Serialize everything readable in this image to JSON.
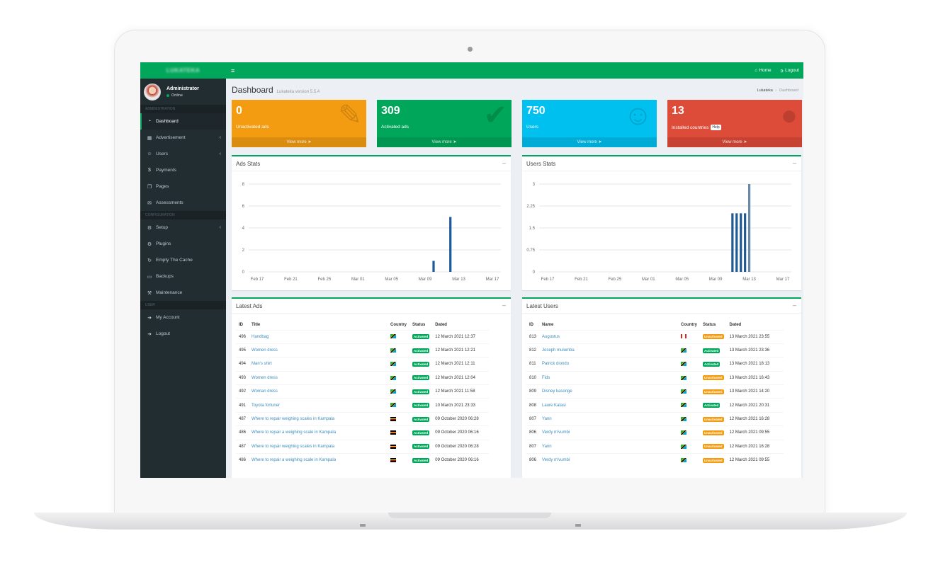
{
  "app": {
    "logo_text": "LUKATEKA",
    "version_label": "Lukateka version 5.5.4"
  },
  "user": {
    "name": "Administrator",
    "status": "Online"
  },
  "topbar": {
    "home": "Home",
    "logout": "Logout"
  },
  "sidebar": {
    "section_admin": "ADMINISTRATION",
    "section_config": "CONFIGURATION",
    "section_user": "USER",
    "admin_items": [
      {
        "label": "Dashboard",
        "icon": "dashboard-icon"
      },
      {
        "label": "Advertisement",
        "icon": "table-icon"
      },
      {
        "label": "Users",
        "icon": "users-icon"
      },
      {
        "label": "Payments",
        "icon": "dollar-icon"
      },
      {
        "label": "Pages",
        "icon": "pages-icon"
      },
      {
        "label": "Assessments",
        "icon": "comment-icon"
      }
    ],
    "config_items": [
      {
        "label": "Setup",
        "icon": "gear-icon"
      },
      {
        "label": "Plugins",
        "icon": "plugins-icon"
      },
      {
        "label": "Empty The Cache",
        "icon": "refresh-icon"
      },
      {
        "label": "Backups",
        "icon": "folder-icon"
      },
      {
        "label": "Maintenance",
        "icon": "maintenance-icon"
      }
    ],
    "user_items": [
      {
        "label": "My Account",
        "icon": "signout-icon"
      },
      {
        "label": "Logout",
        "icon": "signout-icon"
      }
    ]
  },
  "page": {
    "title": "Dashboard",
    "breadcrumb": [
      "Lukateka",
      "Dashboard"
    ]
  },
  "stats": [
    {
      "value": "0",
      "label": "Unactivated ads",
      "footer": "View more",
      "color": "#f39c12",
      "icon": "edit-icon"
    },
    {
      "value": "309",
      "label": "Activated ads",
      "footer": "View more",
      "color": "#00a65a",
      "icon": "check-icon"
    },
    {
      "value": "750",
      "label": "Users",
      "footer": "View more",
      "color": "#00c0ef",
      "icon": "user-plus-icon"
    },
    {
      "value": "13",
      "label": "Installed countries",
      "footer": "View more",
      "help": "Help",
      "color": "#dd4b39",
      "icon": "globe-icon"
    }
  ],
  "ads_stats": {
    "title": "Ads Stats"
  },
  "users_stats": {
    "title": "Users Stats"
  },
  "chart_data": [
    {
      "type": "bar",
      "title": "Ads Stats",
      "x_ticks": [
        "Feb 17",
        "Feb 21",
        "Feb 25",
        "Mar 01",
        "Mar 05",
        "Mar 09",
        "Mar 13",
        "Mar 17"
      ],
      "ylim": [
        0,
        8
      ],
      "y_ticks": [
        0,
        2,
        4,
        6,
        8
      ],
      "grid": true,
      "bar_color": "#1f5a96",
      "series": [
        {
          "points": [
            {
              "x": "Mar 10",
              "y": 1
            },
            {
              "x": "Mar 12",
              "y": 5
            }
          ]
        }
      ]
    },
    {
      "type": "bar",
      "title": "Users Stats",
      "x_ticks": [
        "Feb 17",
        "Feb 21",
        "Feb 25",
        "Mar 01",
        "Mar 05",
        "Mar 09",
        "Mar 13",
        "Mar 17"
      ],
      "ylim": [
        0,
        3
      ],
      "y_ticks": [
        0,
        0.75,
        1.5,
        2.25,
        3
      ],
      "grid": true,
      "bar_color": "#1f5a96",
      "series": [
        {
          "points": [
            {
              "x": "Mar 11",
              "y": 2
            },
            {
              "x": "Mar 11.5",
              "y": 2
            },
            {
              "x": "Mar 12",
              "y": 2
            },
            {
              "x": "Mar 12.5",
              "y": 2
            },
            {
              "x": "Mar 13",
              "y": 3
            }
          ]
        }
      ]
    }
  ],
  "latest_ads": {
    "title": "Latest Ads",
    "headers": [
      "ID",
      "Title",
      "Country",
      "Status",
      "Dated"
    ],
    "rows": [
      {
        "id": "496",
        "title": "Handbag",
        "flag": "tz",
        "status": "Activated",
        "dated": "12 March 2021 12:37"
      },
      {
        "id": "495",
        "title": "Women dress",
        "flag": "tz",
        "status": "Activated",
        "dated": "12 March 2021 12:21"
      },
      {
        "id": "494",
        "title": "Man's shirt",
        "flag": "tz",
        "status": "Activated",
        "dated": "12 March 2021 12:11"
      },
      {
        "id": "493",
        "title": "Women dress",
        "flag": "tz",
        "status": "Activated",
        "dated": "12 March 2021 12:04"
      },
      {
        "id": "492",
        "title": "Woman dress",
        "flag": "tz",
        "status": "Activated",
        "dated": "12 March 2021 11:58"
      },
      {
        "id": "491",
        "title": "Toyota fortuner",
        "flag": "tz",
        "status": "Activated",
        "dated": "10 March 2021 23:33"
      },
      {
        "id": "487",
        "title": "Where to repair weighing scales in Kampala",
        "flag": "ug",
        "status": "Activated",
        "dated": "09 October 2020 06:28"
      },
      {
        "id": "486",
        "title": "Where to repair a weighing scale in Kampala",
        "flag": "ug",
        "status": "Activated",
        "dated": "09 October 2020 06:16"
      },
      {
        "id": "487",
        "title": "Where to repair weighing scales in Kampala",
        "flag": "ug",
        "status": "Activated",
        "dated": "09 October 2020 06:28"
      },
      {
        "id": "486",
        "title": "Where to repair a weighing scale in Kampala",
        "flag": "ug",
        "status": "Activated",
        "dated": "09 October 2020 06:16"
      }
    ]
  },
  "latest_users": {
    "title": "Latest Users",
    "headers": [
      "ID",
      "Name",
      "Country",
      "Status",
      "Dated"
    ],
    "rows": [
      {
        "id": "813",
        "name": "Augustus",
        "flag": "ca",
        "status": "Unactivated",
        "dated": "13 March 2021 23:55"
      },
      {
        "id": "812",
        "name": "Joseph mulumba",
        "flag": "tz",
        "status": "Activated",
        "dated": "13 March 2021 23:36"
      },
      {
        "id": "811",
        "name": "Patrick diondo",
        "flag": "tz",
        "status": "Activated",
        "dated": "13 March 2021 18:13"
      },
      {
        "id": "810",
        "name": "Fids",
        "flag": "tz",
        "status": "Unactivated",
        "dated": "13 March 2021 16:43"
      },
      {
        "id": "809",
        "name": "Disney kasonge",
        "flag": "tz",
        "status": "Unactivated",
        "dated": "13 March 2021 14:20"
      },
      {
        "id": "808",
        "name": "Laure Katasi",
        "flag": "tz",
        "status": "Activated",
        "dated": "12 March 2021 20:31"
      },
      {
        "id": "807",
        "name": "Yann",
        "flag": "tz",
        "status": "Unactivated",
        "dated": "12 March 2021 16:28"
      },
      {
        "id": "806",
        "name": "Verdy m'vumbi",
        "flag": "tz",
        "status": "Unactivated",
        "dated": "12 March 2021 09:55"
      },
      {
        "id": "807",
        "name": "Yann",
        "flag": "tz",
        "status": "Unactivated",
        "dated": "12 March 2021 16:28"
      },
      {
        "id": "806",
        "name": "Verdy m'vumbi",
        "flag": "tz",
        "status": "Unactivated",
        "dated": "12 March 2021 09:55"
      }
    ]
  }
}
